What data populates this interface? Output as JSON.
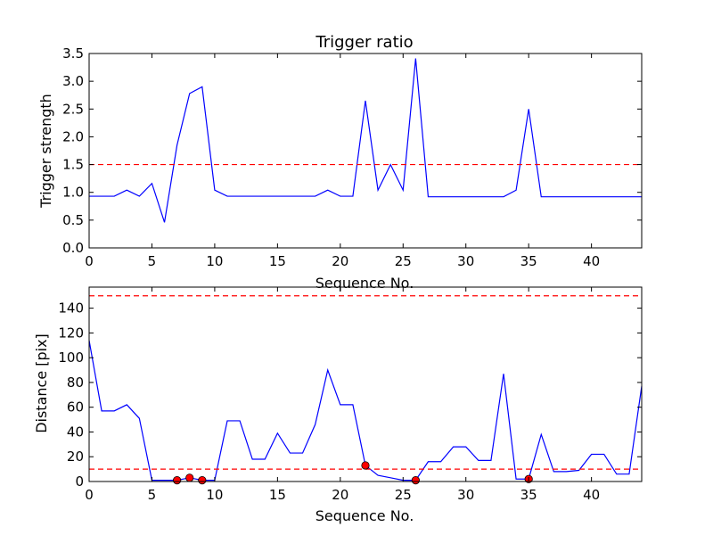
{
  "chart_data": [
    {
      "type": "line",
      "title": "Trigger ratio",
      "xlabel": "Sequence No.",
      "ylabel": "Trigger strength",
      "xlim": [
        0,
        44
      ],
      "ylim": [
        0,
        3.5
      ],
      "xticks": [
        0,
        5,
        10,
        15,
        20,
        25,
        30,
        35,
        40
      ],
      "yticks": [
        0.0,
        0.5,
        1.0,
        1.5,
        2.0,
        2.5,
        3.0,
        3.5
      ],
      "xtick_labels": [
        "0",
        "5",
        "10",
        "15",
        "20",
        "25",
        "30",
        "35",
        "40"
      ],
      "ytick_labels": [
        "0.0",
        "0.5",
        "1.0",
        "1.5",
        "2.0",
        "2.5",
        "3.0",
        "3.5"
      ],
      "grid": false,
      "series": [
        {
          "color": "#0000ff",
          "style": "solid",
          "x": [
            0,
            1,
            2,
            3,
            4,
            5,
            6,
            7,
            8,
            9,
            10,
            11,
            12,
            13,
            14,
            15,
            16,
            17,
            18,
            19,
            20,
            21,
            22,
            23,
            24,
            25,
            26,
            27,
            28,
            29,
            30,
            31,
            32,
            33,
            34,
            35,
            36,
            37,
            38,
            39,
            40,
            41,
            42,
            43,
            44
          ],
          "y": [
            0.93,
            0.93,
            0.93,
            1.04,
            0.93,
            1.16,
            0.46,
            1.85,
            2.78,
            2.9,
            1.04,
            0.93,
            0.93,
            0.93,
            0.93,
            0.93,
            0.93,
            0.93,
            0.93,
            1.04,
            0.93,
            0.93,
            2.65,
            1.04,
            1.5,
            1.04,
            3.41,
            0.92,
            0.92,
            0.92,
            0.92,
            0.92,
            0.92,
            0.92,
            1.04,
            2.5,
            0.92,
            0.92,
            0.92,
            0.92,
            0.92,
            0.92,
            0.92,
            0.92,
            0.92
          ]
        }
      ],
      "hlines": [
        {
          "y": 1.5,
          "color": "#ff0000",
          "style": "dashed"
        }
      ]
    },
    {
      "type": "line",
      "title": "",
      "xlabel": "Sequence No.",
      "ylabel": "Distance [pix]",
      "xlim": [
        0,
        44
      ],
      "ylim": [
        0,
        157
      ],
      "xticks": [
        0,
        5,
        10,
        15,
        20,
        25,
        30,
        35,
        40
      ],
      "yticks": [
        0,
        20,
        40,
        60,
        80,
        100,
        120,
        140
      ],
      "xtick_labels": [
        "0",
        "5",
        "10",
        "15",
        "20",
        "25",
        "30",
        "35",
        "40"
      ],
      "ytick_labels": [
        "0",
        "20",
        "40",
        "60",
        "80",
        "100",
        "120",
        "140"
      ],
      "grid": false,
      "series": [
        {
          "color": "#0000ff",
          "style": "solid",
          "x": [
            0,
            1,
            2,
            3,
            4,
            5,
            6,
            7,
            8,
            9,
            10,
            11,
            12,
            13,
            14,
            15,
            16,
            17,
            18,
            19,
            20,
            21,
            22,
            23,
            24,
            25,
            26,
            27,
            28,
            29,
            30,
            31,
            32,
            33,
            34,
            35,
            36,
            37,
            38,
            39,
            40,
            41,
            42,
            43,
            44
          ],
          "y": [
            114,
            57,
            57,
            62,
            51,
            1,
            1,
            1,
            3,
            1,
            1,
            49,
            49,
            18,
            18,
            39,
            23,
            23,
            46,
            90,
            62,
            62,
            13,
            5,
            3,
            1,
            1,
            16,
            16,
            28,
            28,
            17,
            17,
            87,
            2,
            2,
            38,
            8,
            8,
            9,
            22,
            22,
            6,
            6,
            77
          ]
        }
      ],
      "markers": {
        "color": "#ff0000",
        "points": [
          {
            "x": 7,
            "y": 1
          },
          {
            "x": 8,
            "y": 3
          },
          {
            "x": 9,
            "y": 1
          },
          {
            "x": 22,
            "y": 13
          },
          {
            "x": 26,
            "y": 1
          },
          {
            "x": 35,
            "y": 2
          }
        ]
      },
      "hlines": [
        {
          "y": 150,
          "color": "#ff0000",
          "style": "dashed"
        },
        {
          "y": 10,
          "color": "#ff0000",
          "style": "dashed"
        }
      ]
    }
  ]
}
